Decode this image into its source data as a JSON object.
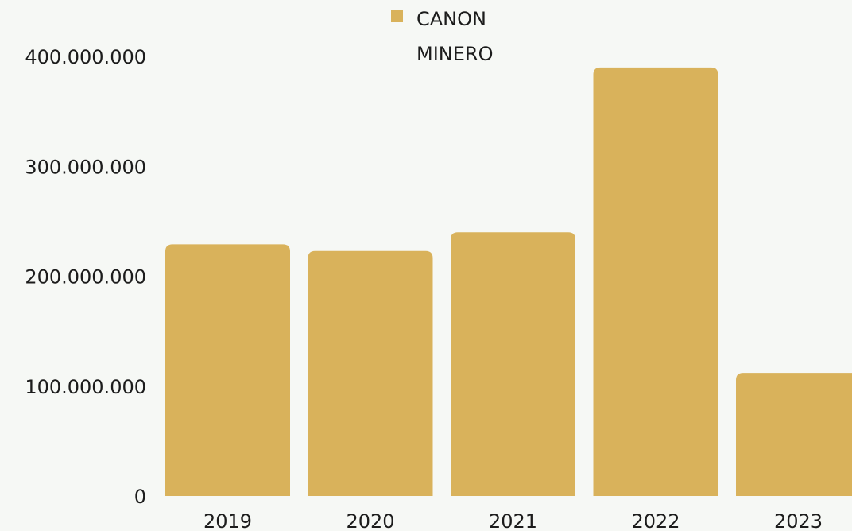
{
  "chart_data": {
    "type": "bar",
    "categories": [
      "2019",
      "2020",
      "2021",
      "2022",
      "2023"
    ],
    "series": [
      {
        "name": "CANON MINERO",
        "values": [
          229000000,
          223000000,
          240000000,
          390000000,
          112000000
        ]
      }
    ],
    "legend": {
      "position": "top",
      "label_lines": [
        "CANON",
        "MINERO"
      ]
    },
    "y_ticks": [
      "0",
      "100.000.000",
      "200.000.000",
      "300.000.000",
      "400.000.000"
    ],
    "y_tick_values": [
      0,
      100000000,
      200000000,
      300000000,
      400000000
    ],
    "ylim": [
      0,
      400000000
    ],
    "grid": false,
    "colors": {
      "bar": "#d9b25b",
      "text": "#1c1c1c",
      "background": "#f6f8f5"
    }
  }
}
